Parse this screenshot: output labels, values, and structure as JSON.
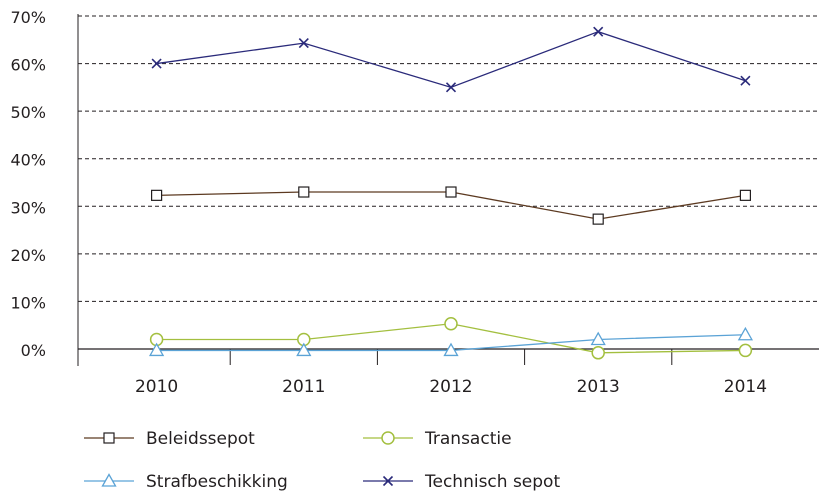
{
  "chart_data": {
    "type": "line",
    "title": "",
    "xlabel": "",
    "ylabel": "",
    "categories": [
      "2010",
      "2011",
      "2012",
      "2013",
      "2014"
    ],
    "ylim": [
      0,
      70
    ],
    "yticks": [
      0,
      10,
      20,
      30,
      40,
      50,
      60,
      70
    ],
    "ytick_labels": [
      "0%",
      "10%",
      "20%",
      "30%",
      "40%",
      "50%",
      "60%",
      "70%"
    ],
    "grid": true,
    "grid_style": "dashed horizontal",
    "legend_position": "bottom",
    "series": [
      {
        "name": "Beleidssepot",
        "marker": "square",
        "color": "#5c3a21",
        "values": [
          32.3,
          33.0,
          33.0,
          27.3,
          32.3
        ]
      },
      {
        "name": "Transactie",
        "marker": "circle",
        "color": "#a3bf3f",
        "values": [
          2.0,
          2.0,
          5.3,
          -0.8,
          -0.3
        ]
      },
      {
        "name": "Strafbeschikking",
        "marker": "triangle",
        "color": "#5ba3d6",
        "values": [
          -0.3,
          -0.3,
          -0.3,
          2.0,
          3.0
        ]
      },
      {
        "name": "Technisch sepot",
        "marker": "x",
        "color": "#2a2a7a",
        "values": [
          60.0,
          64.3,
          55.0,
          66.7,
          56.4
        ]
      }
    ]
  }
}
